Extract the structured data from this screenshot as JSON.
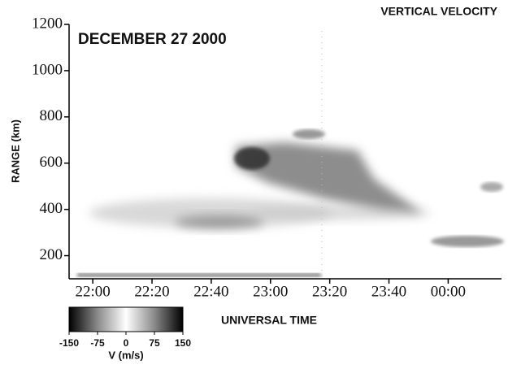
{
  "chart_data": {
    "type": "range-time",
    "title": "VERTICAL VELOCITY",
    "annotation": "DECEMBER 27 2000",
    "y_label": "RANGE (km)",
    "x_label": "UNIVERSAL TIME",
    "ylim": [
      100,
      1200
    ],
    "yticks": [
      200,
      400,
      600,
      800,
      1000,
      1200
    ],
    "xlim": [
      "21:52",
      "00:18"
    ],
    "xticks": [
      "22:00",
      "22:20",
      "22:40",
      "23:00",
      "23:20",
      "23:40",
      "00:00"
    ],
    "colorbar": {
      "label": "V (m/s)",
      "range": [
        -150,
        150
      ],
      "ticks": [
        -150,
        -75,
        0,
        75,
        150
      ],
      "colors": [
        "#000000",
        "#8a8a8a",
        "#ffffff",
        "#8a8a8a",
        "#000000"
      ]
    }
  }
}
